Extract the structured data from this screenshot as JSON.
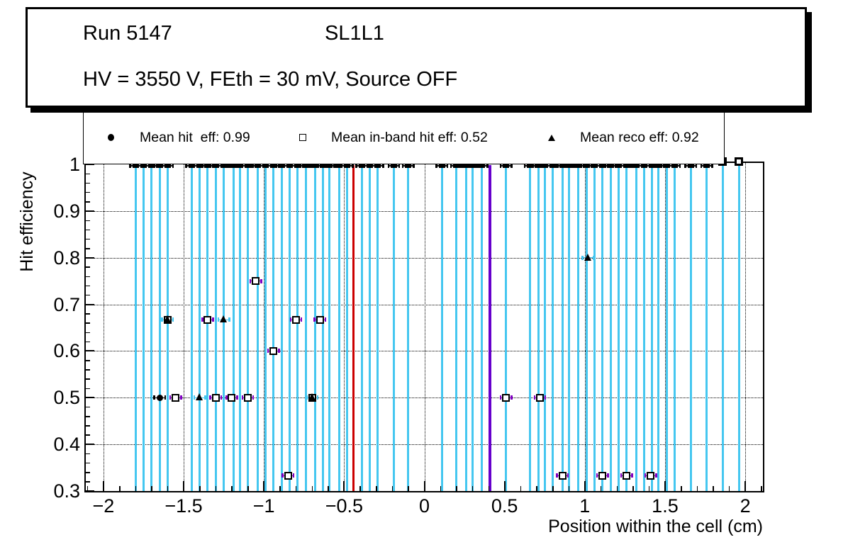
{
  "title_box": {
    "run": "Run 5147",
    "layer": "SL1L1",
    "conditions": "HV = 3550 V, FEth = 30 mV, Source OFF"
  },
  "legend": {
    "entries": [
      {
        "marker": "filled-circle",
        "label": "Mean hit  eff: 0.99",
        "mean": 0.99
      },
      {
        "marker": "open-square",
        "label": "Mean in-band hit eff: 0.52",
        "mean": 0.52
      },
      {
        "marker": "filled-triangle",
        "label": "Mean reco eff: 0.92",
        "mean": 0.92
      }
    ]
  },
  "colors": {
    "cell_line": "#45c7f0",
    "red_line": "#cc0000",
    "purple_line": "#6600cc",
    "square_errorbar": "#8000c0",
    "triangle_errorbar": "#45c7f0",
    "circle_errorbar": "#000000",
    "marker": "#000000"
  },
  "chart_data": {
    "type": "scatter",
    "title": "",
    "xlabel": "Position within the cell (cm)",
    "ylabel": "Hit efficiency",
    "xlim": [
      -2.11,
      2.11
    ],
    "ylim": [
      0.3,
      1.003
    ],
    "grid": true,
    "x_ticks": [
      -2,
      -1.5,
      -1,
      -0.5,
      0,
      0.5,
      1,
      1.5,
      2
    ],
    "x_tick_labels": [
      "−2",
      "−1.5",
      "−1",
      "−0.5",
      "0",
      "0.5",
      "1",
      "1.5",
      "2"
    ],
    "x_minor_step": 0.1,
    "y_ticks": [
      1,
      0.9,
      0.8,
      0.7,
      0.6,
      0.5,
      0.4,
      0.3
    ],
    "y_tick_labels": [
      "1",
      "0.9",
      "0.8",
      "0.7",
      "0.6",
      "0.5",
      "0.4",
      "0.3"
    ],
    "y_minor_step": 0.02,
    "y_gridlines": [
      0.9,
      0.8,
      0.7,
      0.6,
      0.5,
      0.4
    ],
    "cell_lines_x": [
      -1.8,
      -1.75,
      -1.7,
      -1.65,
      -1.6,
      -1.45,
      -1.4,
      -1.35,
      -1.3,
      -1.25,
      -1.19,
      -1.15,
      -1.1,
      -1.04,
      -0.99,
      -0.94,
      -0.89,
      -0.84,
      -0.79,
      -0.74,
      -0.68,
      -0.63,
      -0.59,
      -0.53,
      -0.48,
      -0.39,
      -0.34,
      -0.29,
      -0.19,
      -0.1,
      0.11,
      0.2,
      0.26,
      0.3,
      0.36,
      0.51,
      0.66,
      0.71,
      0.75,
      0.8,
      0.86,
      0.9,
      0.96,
      1.01,
      1.06,
      1.11,
      1.16,
      1.21,
      1.26,
      1.32,
      1.37,
      1.42,
      1.46,
      1.51,
      1.56,
      1.66,
      1.76,
      1.86,
      1.96
    ],
    "vertical_marker_lines": [
      {
        "name": "red-line",
        "x": -0.44,
        "color": "#cc0000",
        "width": 3
      },
      {
        "name": "purple-line",
        "x": 0.41,
        "color": "#6600cc",
        "width": 4
      }
    ],
    "top_marker_row": {
      "y": 0.997,
      "x": [
        -1.8,
        -1.75,
        -1.7,
        -1.65,
        -1.6,
        -1.45,
        -1.4,
        -1.35,
        -1.3,
        -1.25,
        -1.19,
        -1.15,
        -1.1,
        -1.04,
        -0.99,
        -0.94,
        -0.89,
        -0.84,
        -0.79,
        -0.74,
        -0.68,
        -0.63,
        -0.59,
        -0.53,
        -0.48,
        -0.39,
        -0.34,
        -0.29,
        -0.19,
        -0.1,
        0.11,
        0.2,
        0.26,
        0.3,
        0.36,
        0.51,
        0.66,
        0.71,
        0.75,
        0.8,
        0.86,
        0.9,
        0.96,
        1.01,
        1.06,
        1.11,
        1.16,
        1.21,
        1.26,
        1.32,
        1.37,
        1.42,
        1.46,
        1.51,
        1.56,
        1.66,
        1.76
      ]
    },
    "raised_squares": [
      {
        "x": 1.86,
        "y": 1.006
      },
      {
        "x": 1.96,
        "y": 1.006
      }
    ],
    "series": [
      {
        "name": "hit-efficiency",
        "legend": "Mean hit  eff: 0.99",
        "marker": "filled-circle",
        "errorbar_color": "#000000",
        "xerr": 0.035,
        "points": [
          {
            "x": -1.65,
            "y": 0.5
          }
        ]
      },
      {
        "name": "in-band-hit-efficiency",
        "legend": "Mean in-band hit eff: 0.52",
        "marker": "open-square",
        "errorbar_color": "#8000c0",
        "xerr": 0.035,
        "points": [
          {
            "x": -1.05,
            "y": 0.75
          },
          {
            "x": -1.6,
            "y": 0.667
          },
          {
            "x": -1.35,
            "y": 0.667
          },
          {
            "x": -0.8,
            "y": 0.667
          },
          {
            "x": -0.65,
            "y": 0.667
          },
          {
            "x": -0.94,
            "y": 0.6
          },
          {
            "x": -1.55,
            "y": 0.5
          },
          {
            "x": -1.3,
            "y": 0.5
          },
          {
            "x": -1.2,
            "y": 0.5
          },
          {
            "x": -1.1,
            "y": 0.5
          },
          {
            "x": -0.7,
            "y": 0.5
          },
          {
            "x": 0.51,
            "y": 0.5
          },
          {
            "x": 0.72,
            "y": 0.5
          },
          {
            "x": -0.85,
            "y": 0.333
          },
          {
            "x": 0.86,
            "y": 0.333
          },
          {
            "x": 1.11,
            "y": 0.333
          },
          {
            "x": 1.26,
            "y": 0.333
          },
          {
            "x": 1.41,
            "y": 0.333
          }
        ]
      },
      {
        "name": "reco-efficiency",
        "legend": "Mean reco eff: 0.92",
        "marker": "filled-triangle",
        "errorbar_color": "#45c7f0",
        "xerr": 0.035,
        "points": [
          {
            "x": -1.6,
            "y": 0.667
          },
          {
            "x": -1.25,
            "y": 0.667
          },
          {
            "x": -1.4,
            "y": 0.5
          },
          {
            "x": -0.7,
            "y": 0.5
          },
          {
            "x": 1.02,
            "y": 0.8
          }
        ]
      }
    ]
  }
}
